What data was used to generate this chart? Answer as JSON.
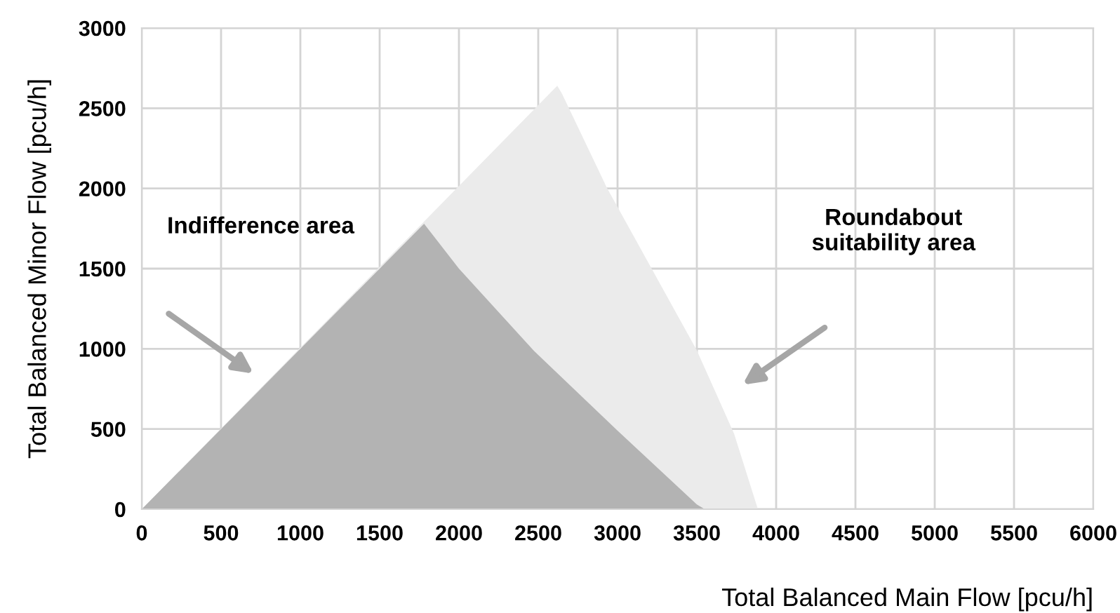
{
  "chart_data": {
    "type": "area",
    "xlabel": "Total Balanced Main Flow [pcu/h]",
    "ylabel": "Total Balanced Minor Flow [pcu/h]",
    "series": [
      {
        "color": "#ebebeb",
        "x": [
          0,
          2620,
          2650,
          2930,
          3500,
          3735,
          3885
        ],
        "values": [
          0,
          2640,
          2590,
          2010,
          990,
          470,
          0
        ]
      },
      {
        "color": "#b3b3b3",
        "x": [
          0,
          1780,
          2000,
          2470,
          3000,
          3500,
          3550
        ],
        "values": [
          0,
          1780,
          1500,
          990,
          490,
          30,
          0
        ]
      }
    ],
    "xlim": [
      0,
      6000
    ],
    "xticks": [
      0,
      500,
      1000,
      1500,
      2000,
      2500,
      3000,
      3500,
      4000,
      4500,
      5000,
      5500,
      6000
    ],
    "ylim": [
      0,
      3000
    ],
    "yticks": [
      0,
      500,
      1000,
      1500,
      2000,
      2500,
      3000
    ],
    "grid": true,
    "annotations": [
      "Indifference area",
      "Roundabout\nsuitability area"
    ]
  }
}
